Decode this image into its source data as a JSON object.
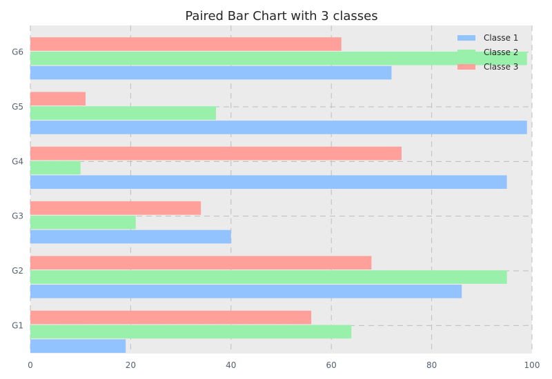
{
  "chart_data": {
    "type": "bar",
    "orientation": "horizontal",
    "title": "Paired Bar Chart with 3 classes",
    "xlabel": "",
    "ylabel": "",
    "categories": [
      "G1",
      "G2",
      "G3",
      "G4",
      "G5",
      "G6"
    ],
    "series": [
      {
        "name": "Classe 1",
        "values": [
          19,
          86,
          40,
          95,
          99,
          72
        ]
      },
      {
        "name": "Classe 2",
        "values": [
          64,
          95,
          21,
          10,
          37,
          99
        ]
      },
      {
        "name": "Classe 3",
        "values": [
          56,
          68,
          34,
          74,
          11,
          62
        ]
      }
    ],
    "xlim": [
      0,
      100
    ],
    "x_ticks": [
      "0",
      "20",
      "40",
      "60",
      "80",
      "100"
    ],
    "grid": true,
    "legend_position": "top-right"
  },
  "colors": {
    "plot_background": "#ebebeb",
    "series": [
      "#92c3ff",
      "#98f0aa",
      "#ffa19a"
    ]
  }
}
